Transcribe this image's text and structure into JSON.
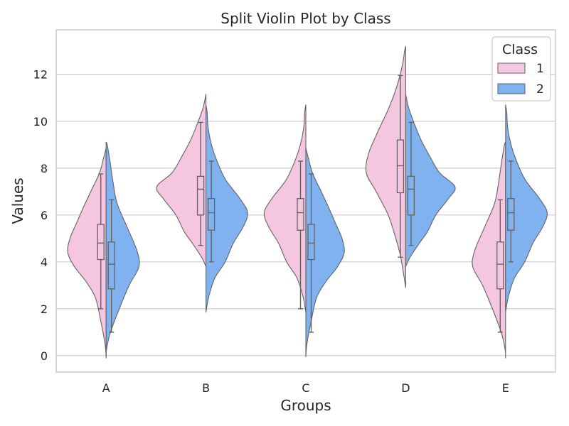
{
  "chart_data": {
    "type": "violin",
    "title": "Split Violin Plot by Class",
    "xlabel": "Groups",
    "ylabel": "Values",
    "ylim": [
      -0.7,
      13.9
    ],
    "yticks": [
      0,
      2,
      4,
      6,
      8,
      10,
      12
    ],
    "categories": [
      "A",
      "B",
      "C",
      "D",
      "E"
    ],
    "grid": "horizontal",
    "legend": {
      "title": "Class",
      "position": "top-right"
    },
    "split_by": "Class",
    "series": [
      {
        "name": "1",
        "color": "#f4c6e0",
        "side": "left",
        "stats": [
          {
            "min": 2.0,
            "q1": 4.1,
            "median": 4.8,
            "q3": 5.6,
            "max": 7.75
          },
          {
            "min": 4.7,
            "q1": 6.0,
            "median": 7.1,
            "q3": 7.65,
            "max": 9.95
          },
          {
            "min": 2.0,
            "q1": 5.35,
            "median": 6.1,
            "q3": 6.7,
            "max": 8.3
          },
          {
            "min": 4.2,
            "q1": 6.95,
            "median": 8.1,
            "q3": 9.2,
            "max": 11.95
          },
          {
            "min": 1.0,
            "q1": 2.85,
            "median": 3.9,
            "q3": 4.85,
            "max": 6.65
          }
        ],
        "density": [
          [
            [
              -0.05,
              0
            ],
            [
              0.5,
              0.02
            ],
            [
              1.5,
              0.1
            ],
            [
              2.5,
              0.2
            ],
            [
              3.2,
              0.38
            ],
            [
              3.8,
              0.58
            ],
            [
              4.4,
              0.7
            ],
            [
              5.0,
              0.66
            ],
            [
              5.6,
              0.55
            ],
            [
              6.3,
              0.42
            ],
            [
              7.0,
              0.28
            ],
            [
              7.8,
              0.12
            ],
            [
              8.4,
              0.05
            ],
            [
              8.85,
              0
            ]
          ],
          [
            [
              3.8,
              0
            ],
            [
              4.2,
              0.08
            ],
            [
              4.8,
              0.25
            ],
            [
              5.3,
              0.4
            ],
            [
              6.0,
              0.55
            ],
            [
              6.7,
              0.78
            ],
            [
              7.2,
              0.9
            ],
            [
              7.8,
              0.62
            ],
            [
              8.5,
              0.44
            ],
            [
              9.2,
              0.28
            ],
            [
              10.0,
              0.14
            ],
            [
              10.6,
              0.05
            ],
            [
              11.15,
              0
            ]
          ],
          [
            [
              1.85,
              0
            ],
            [
              2.5,
              0.05
            ],
            [
              3.3,
              0.16
            ],
            [
              4.0,
              0.35
            ],
            [
              4.8,
              0.5
            ],
            [
              5.5,
              0.68
            ],
            [
              6.1,
              0.76
            ],
            [
              6.7,
              0.62
            ],
            [
              7.5,
              0.36
            ],
            [
              8.3,
              0.2
            ],
            [
              9.0,
              0.1
            ],
            [
              9.7,
              0.04
            ],
            [
              10.4,
              0.02
            ],
            [
              10.7,
              0
            ]
          ],
          [
            [
              2.9,
              0
            ],
            [
              3.5,
              0.04
            ],
            [
              4.3,
              0.1
            ],
            [
              5.0,
              0.18
            ],
            [
              6.0,
              0.32
            ],
            [
              7.0,
              0.54
            ],
            [
              7.8,
              0.72
            ],
            [
              8.6,
              0.68
            ],
            [
              9.5,
              0.52
            ],
            [
              10.5,
              0.32
            ],
            [
              11.5,
              0.16
            ],
            [
              12.4,
              0.06
            ],
            [
              13.0,
              0.02
            ],
            [
              13.2,
              0
            ]
          ],
          [
            [
              -0.1,
              0
            ],
            [
              0.3,
              0.01
            ],
            [
              1.0,
              0.08
            ],
            [
              2.0,
              0.24
            ],
            [
              3.0,
              0.42
            ],
            [
              3.8,
              0.6
            ],
            [
              4.5,
              0.56
            ],
            [
              5.5,
              0.38
            ],
            [
              6.5,
              0.2
            ],
            [
              7.5,
              0.12
            ],
            [
              8.3,
              0.07
            ],
            [
              9.0,
              0.02
            ],
            [
              9.1,
              0
            ]
          ]
        ]
      },
      {
        "name": "2",
        "color": "#7fb2ee",
        "side": "right",
        "stats": [
          {
            "min": 1.0,
            "q1": 2.85,
            "median": 3.9,
            "q3": 4.85,
            "max": 6.65
          },
          {
            "min": 4.0,
            "q1": 5.35,
            "median": 6.1,
            "q3": 6.7,
            "max": 8.3
          },
          {
            "min": 1.0,
            "q1": 4.1,
            "median": 4.8,
            "q3": 5.6,
            "max": 7.75
          },
          {
            "min": 4.7,
            "q1": 6.0,
            "median": 7.1,
            "q3": 7.65,
            "max": 9.95
          },
          {
            "min": 4.0,
            "q1": 5.35,
            "median": 6.1,
            "q3": 6.7,
            "max": 8.3
          }
        ],
        "density": [
          [
            [
              -0.1,
              0
            ],
            [
              0.3,
              0.01
            ],
            [
              1.0,
              0.08
            ],
            [
              2.0,
              0.24
            ],
            [
              3.0,
              0.42
            ],
            [
              3.8,
              0.6
            ],
            [
              4.5,
              0.56
            ],
            [
              5.5,
              0.38
            ],
            [
              6.5,
              0.2
            ],
            [
              7.5,
              0.12
            ],
            [
              8.3,
              0.07
            ],
            [
              9.0,
              0.02
            ],
            [
              9.1,
              0
            ]
          ],
          [
            [
              1.85,
              0
            ],
            [
              2.5,
              0.05
            ],
            [
              3.3,
              0.16
            ],
            [
              4.0,
              0.35
            ],
            [
              4.8,
              0.5
            ],
            [
              5.5,
              0.68
            ],
            [
              6.1,
              0.76
            ],
            [
              6.7,
              0.62
            ],
            [
              7.5,
              0.36
            ],
            [
              8.3,
              0.2
            ],
            [
              9.0,
              0.1
            ],
            [
              9.7,
              0.04
            ],
            [
              10.4,
              0.02
            ],
            [
              10.7,
              0
            ]
          ],
          [
            [
              -0.05,
              0
            ],
            [
              0.5,
              0.02
            ],
            [
              1.5,
              0.1
            ],
            [
              2.5,
              0.2
            ],
            [
              3.2,
              0.38
            ],
            [
              3.8,
              0.58
            ],
            [
              4.4,
              0.7
            ],
            [
              5.0,
              0.66
            ],
            [
              5.6,
              0.55
            ],
            [
              6.3,
              0.42
            ],
            [
              7.0,
              0.28
            ],
            [
              7.8,
              0.12
            ],
            [
              8.4,
              0.05
            ],
            [
              8.85,
              0
            ]
          ],
          [
            [
              3.8,
              0
            ],
            [
              4.2,
              0.08
            ],
            [
              4.8,
              0.25
            ],
            [
              5.3,
              0.4
            ],
            [
              6.0,
              0.55
            ],
            [
              6.7,
              0.78
            ],
            [
              7.2,
              0.9
            ],
            [
              7.8,
              0.62
            ],
            [
              8.5,
              0.44
            ],
            [
              9.2,
              0.28
            ],
            [
              10.0,
              0.14
            ],
            [
              10.6,
              0.05
            ],
            [
              11.15,
              0
            ]
          ],
          [
            [
              1.85,
              0
            ],
            [
              2.5,
              0.05
            ],
            [
              3.3,
              0.16
            ],
            [
              4.0,
              0.35
            ],
            [
              4.8,
              0.5
            ],
            [
              5.5,
              0.68
            ],
            [
              6.1,
              0.76
            ],
            [
              6.7,
              0.62
            ],
            [
              7.5,
              0.36
            ],
            [
              8.3,
              0.2
            ],
            [
              9.0,
              0.1
            ],
            [
              9.7,
              0.04
            ],
            [
              10.4,
              0.02
            ],
            [
              10.7,
              0
            ]
          ]
        ]
      }
    ]
  },
  "style": {
    "grid_color": "#cccccc",
    "spine_color": "#cccccc",
    "outline_color": "#636363",
    "box_color": "#636363"
  }
}
